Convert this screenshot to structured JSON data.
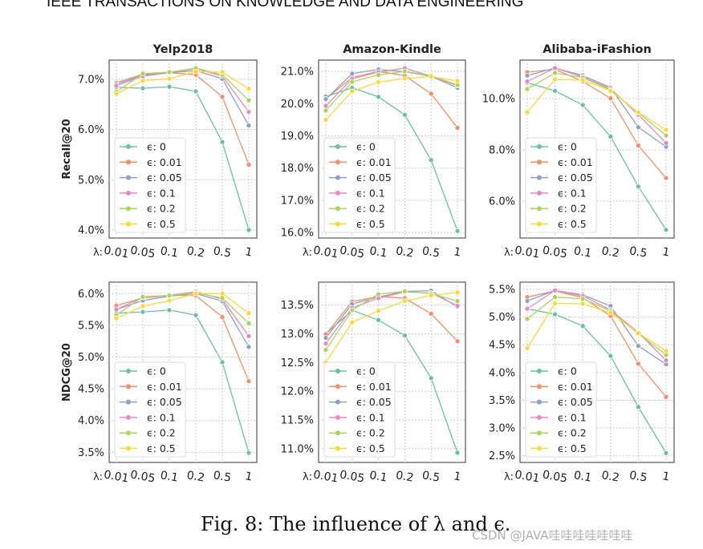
{
  "header": "IEEE TRANSACTIONS ON KNOWLEDGE AND DATA ENGINEERING",
  "caption": "Fig. 8: The influence of λ and ϵ.",
  "watermark": "CSDN @JAVA哇哇哇哇哇哇哇",
  "x_axis_prefix": "λ:",
  "colors": [
    "#66c2a5",
    "#fc8d62",
    "#8da0cb",
    "#e78ac3",
    "#a6d854",
    "#ffd92f"
  ],
  "chart_data": [
    {
      "type": "line",
      "title": "Yelp2018",
      "ylabel": "Recall@20",
      "x": [
        "0.01",
        "0.05",
        "0.1",
        "0.2",
        "0.5",
        "1"
      ],
      "ylim": [
        3.84,
        7.38
      ],
      "yticks": [
        4.0,
        5.0,
        6.0,
        7.0
      ],
      "ytick_labels": [
        "4.0%",
        "5.0%",
        "6.0%",
        "7.0%"
      ],
      "grid": true,
      "legend": "lower-left",
      "series": [
        {
          "name": "ϵ: 0",
          "values": [
            6.84,
            6.82,
            6.85,
            6.76,
            5.75,
            4.0
          ]
        },
        {
          "name": "ϵ: 0.01",
          "values": [
            6.93,
            7.1,
            7.13,
            7.09,
            6.65,
            5.3
          ]
        },
        {
          "name": "ϵ: 0.05",
          "values": [
            6.9,
            7.08,
            7.13,
            7.17,
            7.01,
            6.08
          ]
        },
        {
          "name": "ϵ: 0.1",
          "values": [
            6.87,
            7.06,
            7.13,
            7.21,
            7.06,
            6.35
          ]
        },
        {
          "name": "ϵ: 0.2",
          "values": [
            6.75,
            7.11,
            7.14,
            7.22,
            7.09,
            6.58
          ]
        },
        {
          "name": "ϵ: 0.5",
          "values": [
            6.71,
            6.97,
            7.01,
            7.15,
            7.14,
            6.81
          ]
        }
      ]
    },
    {
      "type": "line",
      "title": "Amazon-Kindle",
      "ylabel": "",
      "x": [
        "0.01",
        "0.05",
        "0.1",
        "0.2",
        "0.5",
        "1"
      ],
      "ylim": [
        15.83,
        21.35
      ],
      "yticks": [
        16,
        17,
        18,
        19,
        20,
        21
      ],
      "ytick_labels": [
        "16.0%",
        "17.0%",
        "18.0%",
        "19.0%",
        "20.0%",
        "21.0%"
      ],
      "grid": true,
      "legend": "lower-left",
      "series": [
        {
          "name": "ϵ: 0",
          "values": [
            20.22,
            20.49,
            20.21,
            19.65,
            18.25,
            16.05
          ]
        },
        {
          "name": "ϵ: 0.01",
          "values": [
            20.15,
            20.81,
            21.0,
            20.87,
            20.31,
            19.25
          ]
        },
        {
          "name": "ϵ: 0.05",
          "values": [
            20.14,
            20.93,
            21.06,
            20.99,
            20.85,
            20.49
          ]
        },
        {
          "name": "ϵ: 0.1",
          "values": [
            19.93,
            20.77,
            20.98,
            21.1,
            20.85,
            20.56
          ]
        },
        {
          "name": "ϵ: 0.2",
          "values": [
            19.79,
            20.68,
            20.89,
            21.0,
            20.87,
            20.58
          ]
        },
        {
          "name": "ϵ: 0.5",
          "values": [
            19.5,
            20.38,
            20.67,
            20.78,
            20.84,
            20.7
          ]
        }
      ]
    },
    {
      "type": "line",
      "title": "Alibaba-iFashion",
      "ylabel": "",
      "x": [
        "0.01",
        "0.05",
        "0.1",
        "0.2",
        "0.5",
        "1"
      ],
      "ylim": [
        4.56,
        11.5
      ],
      "yticks": [
        6,
        8,
        10
      ],
      "ytick_labels": [
        "6.0%",
        "8.0%",
        "10.0%"
      ],
      "grid": true,
      "legend": "lower-left",
      "series": [
        {
          "name": "ϵ: 0",
          "values": [
            10.62,
            10.3,
            9.75,
            8.52,
            6.57,
            4.88
          ]
        },
        {
          "name": "ϵ: 0.01",
          "values": [
            11.03,
            11.14,
            10.67,
            10.01,
            8.17,
            6.9
          ]
        },
        {
          "name": "ϵ: 0.05",
          "values": [
            10.9,
            11.19,
            10.9,
            10.43,
            8.88,
            8.12
          ]
        },
        {
          "name": "ϵ: 0.1",
          "values": [
            10.67,
            11.19,
            10.84,
            10.38,
            9.37,
            8.27
          ]
        },
        {
          "name": "ϵ: 0.2",
          "values": [
            10.37,
            11.0,
            10.82,
            10.33,
            9.45,
            8.56
          ]
        },
        {
          "name": "ϵ: 0.5",
          "values": [
            9.47,
            10.75,
            10.72,
            10.3,
            9.46,
            8.78
          ]
        }
      ]
    },
    {
      "type": "line",
      "title": "",
      "ylabel": "NDCG@20",
      "x": [
        "0.01",
        "0.05",
        "0.1",
        "0.2",
        "0.5",
        "1"
      ],
      "ylim": [
        3.34,
        6.18
      ],
      "yticks": [
        3.5,
        4.0,
        4.5,
        5.0,
        5.5,
        6.0
      ],
      "ytick_labels": [
        "3.5%",
        "4.0%",
        "4.5%",
        "5.0%",
        "5.5%",
        "6.0%"
      ],
      "grid": true,
      "legend": "lower-left",
      "series": [
        {
          "name": "ϵ: 0",
          "values": [
            5.69,
            5.71,
            5.74,
            5.66,
            4.92,
            3.49
          ]
        },
        {
          "name": "ϵ: 0.01",
          "values": [
            5.81,
            5.93,
            5.97,
            5.97,
            5.63,
            4.62
          ]
        },
        {
          "name": "ϵ: 0.05",
          "values": [
            5.75,
            5.89,
            5.96,
            6.0,
            5.88,
            5.16
          ]
        },
        {
          "name": "ϵ: 0.1",
          "values": [
            5.75,
            5.94,
            5.97,
            6.03,
            5.91,
            5.33
          ]
        },
        {
          "name": "ϵ: 0.2",
          "values": [
            5.66,
            5.95,
            5.97,
            6.01,
            5.93,
            5.53
          ]
        },
        {
          "name": "ϵ: 0.5",
          "values": [
            5.61,
            5.8,
            5.89,
            6.0,
            6.0,
            5.69
          ]
        }
      ]
    },
    {
      "type": "line",
      "title": "",
      "ylabel": "",
      "x": [
        "0.01",
        "0.05",
        "0.1",
        "0.2",
        "0.5",
        "1"
      ],
      "ylim": [
        10.76,
        13.9
      ],
      "yticks": [
        11.0,
        11.5,
        12.0,
        12.5,
        13.0,
        13.5
      ],
      "ytick_labels": [
        "11.0%",
        "11.5%",
        "12.0%",
        "12.5%",
        "13.0%",
        "13.5%"
      ],
      "grid": true,
      "legend": "lower-left",
      "series": [
        {
          "name": "ϵ: 0",
          "values": [
            13.0,
            13.41,
            13.24,
            12.97,
            12.23,
            10.93
          ]
        },
        {
          "name": "ϵ: 0.01",
          "values": [
            12.99,
            13.56,
            13.65,
            13.62,
            13.35,
            12.87
          ]
        },
        {
          "name": "ϵ: 0.05",
          "values": [
            12.93,
            13.52,
            13.64,
            13.74,
            13.75,
            13.47
          ]
        },
        {
          "name": "ϵ: 0.1",
          "values": [
            12.83,
            13.45,
            13.62,
            13.73,
            13.71,
            13.49
          ]
        },
        {
          "name": "ϵ: 0.2",
          "values": [
            12.72,
            13.41,
            13.69,
            13.74,
            13.7,
            13.57
          ]
        },
        {
          "name": "ϵ: 0.5",
          "values": [
            12.5,
            13.2,
            13.4,
            13.57,
            13.67,
            13.72
          ]
        }
      ]
    },
    {
      "type": "line",
      "title": "",
      "ylabel": "",
      "x": [
        "0.01",
        "0.05",
        "0.1",
        "0.2",
        "0.5",
        "1"
      ],
      "ylim": [
        2.38,
        5.63
      ],
      "yticks": [
        2.5,
        3.0,
        3.5,
        4.0,
        4.5,
        5.0,
        5.5
      ],
      "ytick_labels": [
        "2.5%",
        "3.0%",
        "3.5%",
        "4.0%",
        "4.5%",
        "5.0%",
        "5.5%"
      ],
      "grid": true,
      "legend": "lower-left",
      "series": [
        {
          "name": "ϵ: 0",
          "values": [
            5.15,
            5.05,
            4.84,
            4.3,
            3.38,
            2.55
          ]
        },
        {
          "name": "ϵ: 0.01",
          "values": [
            5.36,
            5.47,
            5.35,
            5.02,
            4.16,
            3.56
          ]
        },
        {
          "name": "ϵ: 0.05",
          "values": [
            5.29,
            5.48,
            5.4,
            5.2,
            4.48,
            4.15
          ]
        },
        {
          "name": "ϵ: 0.1",
          "values": [
            5.15,
            5.48,
            5.38,
            5.13,
            4.72,
            4.22
          ]
        },
        {
          "name": "ϵ: 0.2",
          "values": [
            4.97,
            5.36,
            5.33,
            5.11,
            4.7,
            4.32
          ]
        },
        {
          "name": "ϵ: 0.5",
          "values": [
            4.44,
            5.25,
            5.24,
            5.08,
            4.71,
            4.39
          ]
        }
      ]
    }
  ]
}
